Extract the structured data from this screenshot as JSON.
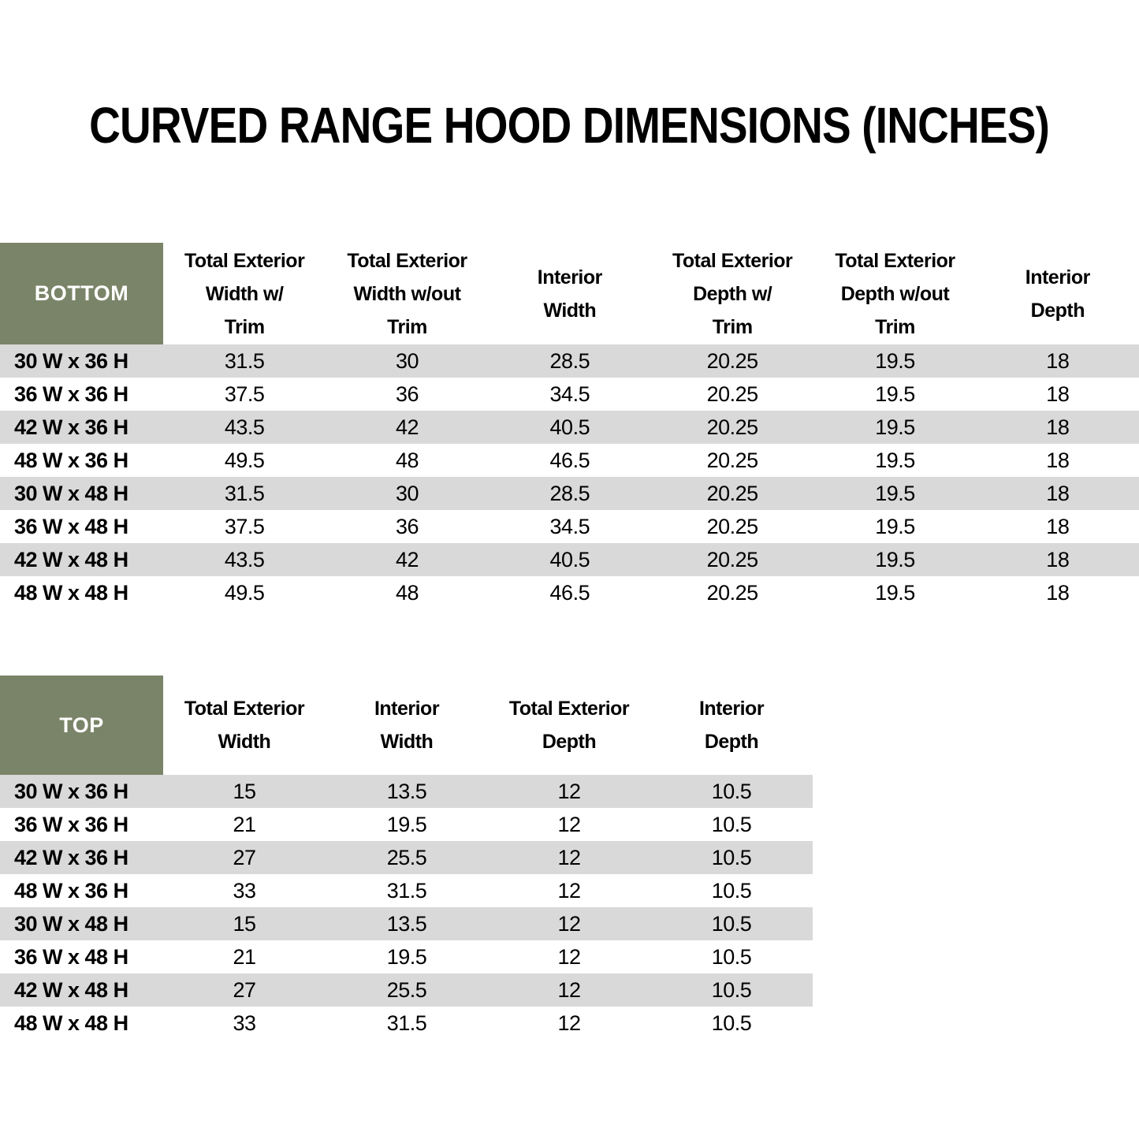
{
  "title": "CURVED RANGE HOOD DIMENSIONS (INCHES)",
  "colors": {
    "header_green": "#7A8468",
    "stripe_gray": "#D9D9D9",
    "text_black": "#000000",
    "header_text_white": "#FFFFFF"
  },
  "bottom_table": {
    "corner_label": "BOTTOM",
    "headers": [
      "Total Exterior\nWidth w/\nTrim",
      "Total Exterior\nWidth w/out\nTrim",
      "Interior\nWidth",
      "Total Exterior\nDepth w/\nTrim",
      "Total Exterior\nDepth w/out\nTrim",
      "Interior\nDepth"
    ],
    "rows": [
      {
        "label": "30 W x 36 H",
        "values": [
          "31.5",
          "30",
          "28.5",
          "20.25",
          "19.5",
          "18"
        ]
      },
      {
        "label": "36 W x 36 H",
        "values": [
          "37.5",
          "36",
          "34.5",
          "20.25",
          "19.5",
          "18"
        ]
      },
      {
        "label": "42 W x 36 H",
        "values": [
          "43.5",
          "42",
          "40.5",
          "20.25",
          "19.5",
          "18"
        ]
      },
      {
        "label": "48 W x 36 H",
        "values": [
          "49.5",
          "48",
          "46.5",
          "20.25",
          "19.5",
          "18"
        ]
      },
      {
        "label": "30 W x 48 H",
        "values": [
          "31.5",
          "30",
          "28.5",
          "20.25",
          "19.5",
          "18"
        ]
      },
      {
        "label": "36 W x 48 H",
        "values": [
          "37.5",
          "36",
          "34.5",
          "20.25",
          "19.5",
          "18"
        ]
      },
      {
        "label": "42 W x 48 H",
        "values": [
          "43.5",
          "42",
          "40.5",
          "20.25",
          "19.5",
          "18"
        ]
      },
      {
        "label": "48 W x 48 H",
        "values": [
          "49.5",
          "48",
          "46.5",
          "20.25",
          "19.5",
          "18"
        ]
      }
    ]
  },
  "top_table": {
    "corner_label": "TOP",
    "headers": [
      "Total Exterior\nWidth",
      "Interior\nWidth",
      "Total Exterior\nDepth",
      "Interior\nDepth"
    ],
    "rows": [
      {
        "label": "30 W x 36 H",
        "values": [
          "15",
          "13.5",
          "12",
          "10.5"
        ]
      },
      {
        "label": "36 W x 36 H",
        "values": [
          "21",
          "19.5",
          "12",
          "10.5"
        ]
      },
      {
        "label": "42 W x 36 H",
        "values": [
          "27",
          "25.5",
          "12",
          "10.5"
        ]
      },
      {
        "label": "48 W x 36 H",
        "values": [
          "33",
          "31.5",
          "12",
          "10.5"
        ]
      },
      {
        "label": "30 W x 48 H",
        "values": [
          "15",
          "13.5",
          "12",
          "10.5"
        ]
      },
      {
        "label": "36 W x 48 H",
        "values": [
          "21",
          "19.5",
          "12",
          "10.5"
        ]
      },
      {
        "label": "42 W x 48 H",
        "values": [
          "27",
          "25.5",
          "12",
          "10.5"
        ]
      },
      {
        "label": "48 W x 48 H",
        "values": [
          "33",
          "31.5",
          "12",
          "10.5"
        ]
      }
    ]
  }
}
